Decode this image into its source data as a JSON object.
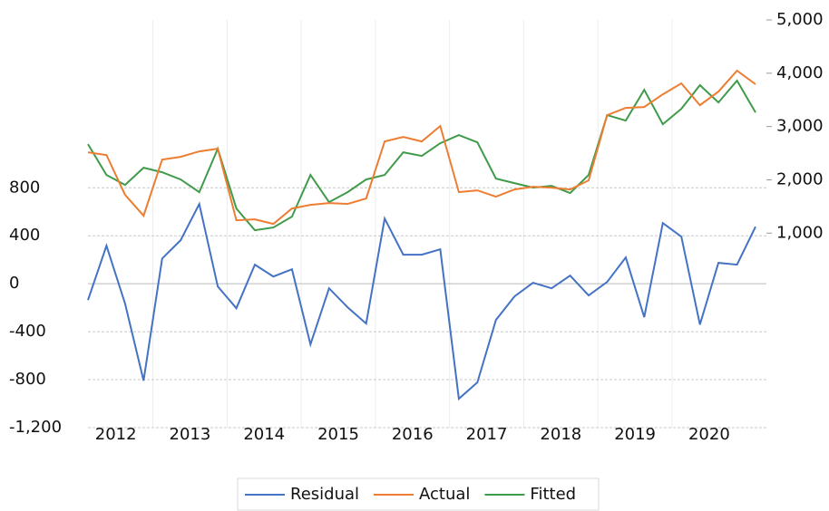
{
  "chart_data": {
    "type": "line",
    "categories": [
      "2012",
      null,
      null,
      null,
      "2013",
      null,
      null,
      null,
      "2014",
      null,
      null,
      null,
      "2015",
      null,
      null,
      null,
      "2016",
      null,
      null,
      null,
      "2017",
      null,
      null,
      null,
      "2018",
      null,
      null,
      null,
      "2019",
      null,
      null,
      null,
      "2020",
      null,
      null,
      null,
      null
    ],
    "series": [
      {
        "name": "Residual",
        "color": "#4472c4",
        "axis": "y",
        "values": [
          -136,
          317,
          -166,
          -808,
          211,
          363,
          665,
          -23,
          -204,
          159,
          60,
          121,
          -506,
          -38,
          -196,
          -332,
          544,
          242,
          242,
          287,
          -959,
          -823,
          -302,
          -106,
          8,
          -38,
          68,
          -98,
          15,
          219,
          -279,
          506,
          393,
          -340,
          174,
          159,
          476
        ]
      },
      {
        "name": "Actual",
        "color": "#ed7d31",
        "axis": "y2",
        "values": [
          2517,
          2466,
          1718,
          1327,
          2381,
          2432,
          2534,
          2585,
          1241,
          1258,
          1173,
          1463,
          1531,
          1565,
          1548,
          1650,
          2721,
          2806,
          2721,
          3010,
          1769,
          1803,
          1684,
          1820,
          1871,
          1854,
          1820,
          1990,
          3214,
          3350,
          3367,
          3605,
          3810,
          3401,
          3656,
          4048,
          3793
        ]
      },
      {
        "name": "Fitted",
        "color": "#3f9b4a",
        "axis": "y2",
        "values": [
          2670,
          2092,
          1905,
          2228,
          2143,
          2007,
          1769,
          2585,
          1463,
          1054,
          1105,
          1310,
          2092,
          1582,
          1769,
          2007,
          2092,
          2517,
          2449,
          2687,
          2840,
          2704,
          2024,
          1939,
          1854,
          1888,
          1752,
          2092,
          3214,
          3112,
          3690,
          3044,
          3333,
          3776,
          3452,
          3861,
          3265
        ]
      }
    ],
    "ylim": [
      -1200,
      2200
    ],
    "yticks": [
      {
        "value": -1200,
        "label": "-1,200"
      },
      -800,
      -400,
      0,
      400,
      800
    ],
    "y2lim": [
      -2650,
      5000
    ],
    "y2ticks": [
      {
        "value": 1000,
        "label": "1,000"
      },
      {
        "value": 2000,
        "label": "2,000"
      },
      {
        "value": 3000,
        "label": "3,000"
      },
      {
        "value": 4000,
        "label": "4,000"
      },
      {
        "value": 5000,
        "label": "5,000"
      }
    ],
    "grid": true,
    "legend": "bottom"
  }
}
